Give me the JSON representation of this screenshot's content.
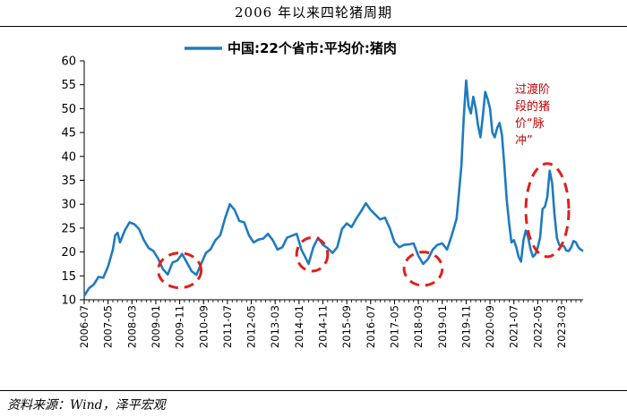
{
  "title": "2006 年以来四轮猪周期",
  "source": "资料来源：Wind，泽平宏观",
  "colors": {
    "line": "#1f7bc0",
    "annotation": "#e0201b"
  },
  "chart_data": {
    "type": "line",
    "legend": {
      "position": "top-center"
    },
    "series": [
      {
        "name": "中国:22个省市:平均价:猪肉",
        "points": [
          [
            "2006-07",
            10.8
          ],
          [
            "2006-09",
            12.4
          ],
          [
            "2006-11",
            13.2
          ],
          [
            "2007-01",
            14.8
          ],
          [
            "2007-03",
            14.6
          ],
          [
            "2007-05",
            17.0
          ],
          [
            "2007-07",
            20.5
          ],
          [
            "2007-08",
            23.5
          ],
          [
            "2007-09",
            24.0
          ],
          [
            "2007-10",
            22.0
          ],
          [
            "2007-12",
            24.5
          ],
          [
            "2008-02",
            26.2
          ],
          [
            "2008-04",
            25.8
          ],
          [
            "2008-06",
            24.8
          ],
          [
            "2008-08",
            22.5
          ],
          [
            "2008-10",
            20.8
          ],
          [
            "2008-12",
            20.2
          ],
          [
            "2009-02",
            18.6
          ],
          [
            "2009-04",
            16.4
          ],
          [
            "2009-06",
            15.3
          ],
          [
            "2009-08",
            17.8
          ],
          [
            "2009-10",
            18.2
          ],
          [
            "2009-12",
            19.6
          ],
          [
            "2010-02",
            17.8
          ],
          [
            "2010-04",
            16.0
          ],
          [
            "2010-06",
            15.2
          ],
          [
            "2010-08",
            17.5
          ],
          [
            "2010-10",
            19.8
          ],
          [
            "2010-12",
            20.6
          ],
          [
            "2011-02",
            22.5
          ],
          [
            "2011-04",
            23.5
          ],
          [
            "2011-06",
            27.0
          ],
          [
            "2011-08",
            30.0
          ],
          [
            "2011-10",
            28.8
          ],
          [
            "2011-12",
            26.5
          ],
          [
            "2012-02",
            26.2
          ],
          [
            "2012-04",
            23.5
          ],
          [
            "2012-06",
            22.0
          ],
          [
            "2012-08",
            22.6
          ],
          [
            "2012-10",
            22.8
          ],
          [
            "2012-12",
            23.8
          ],
          [
            "2013-02",
            22.5
          ],
          [
            "2013-04",
            20.5
          ],
          [
            "2013-06",
            21.0
          ],
          [
            "2013-08",
            23.0
          ],
          [
            "2013-10",
            23.4
          ],
          [
            "2013-12",
            23.8
          ],
          [
            "2014-02",
            20.5
          ],
          [
            "2014-04",
            18.5
          ],
          [
            "2014-05",
            17.5
          ],
          [
            "2014-07",
            21.0
          ],
          [
            "2014-09",
            23.0
          ],
          [
            "2014-11",
            21.5
          ],
          [
            "2015-01",
            20.8
          ],
          [
            "2015-03",
            19.8
          ],
          [
            "2015-05",
            21.0
          ],
          [
            "2015-07",
            24.8
          ],
          [
            "2015-09",
            26.0
          ],
          [
            "2015-11",
            25.2
          ],
          [
            "2016-01",
            27.0
          ],
          [
            "2016-03",
            28.5
          ],
          [
            "2016-05",
            30.2
          ],
          [
            "2016-07",
            28.8
          ],
          [
            "2016-09",
            27.8
          ],
          [
            "2016-11",
            26.8
          ],
          [
            "2017-01",
            27.2
          ],
          [
            "2017-03",
            25.0
          ],
          [
            "2017-05",
            22.0
          ],
          [
            "2017-07",
            21.0
          ],
          [
            "2017-09",
            21.5
          ],
          [
            "2017-11",
            21.6
          ],
          [
            "2018-01",
            21.8
          ],
          [
            "2018-03",
            19.2
          ],
          [
            "2018-05",
            17.5
          ],
          [
            "2018-07",
            18.5
          ],
          [
            "2018-09",
            20.5
          ],
          [
            "2018-11",
            21.5
          ],
          [
            "2019-01",
            21.8
          ],
          [
            "2019-03",
            20.5
          ],
          [
            "2019-05",
            23.5
          ],
          [
            "2019-07",
            27.0
          ],
          [
            "2019-09",
            38.0
          ],
          [
            "2019-10",
            48.0
          ],
          [
            "2019-11",
            55.9
          ],
          [
            "2019-12",
            50.5
          ],
          [
            "2020-01",
            49.0
          ],
          [
            "2020-02",
            52.5
          ],
          [
            "2020-03",
            50.0
          ],
          [
            "2020-04",
            46.5
          ],
          [
            "2020-05",
            44.0
          ],
          [
            "2020-06",
            48.5
          ],
          [
            "2020-07",
            53.5
          ],
          [
            "2020-08",
            52.0
          ],
          [
            "2020-09",
            50.0
          ],
          [
            "2020-10",
            45.0
          ],
          [
            "2020-11",
            44.0
          ],
          [
            "2020-12",
            46.0
          ],
          [
            "2021-01",
            47.0
          ],
          [
            "2021-02",
            44.5
          ],
          [
            "2021-03",
            38.0
          ],
          [
            "2021-04",
            31.0
          ],
          [
            "2021-05",
            26.0
          ],
          [
            "2021-06",
            22.0
          ],
          [
            "2021-07",
            22.5
          ],
          [
            "2021-08",
            21.0
          ],
          [
            "2021-09",
            19.0
          ],
          [
            "2021-10",
            18.0
          ],
          [
            "2021-11",
            22.5
          ],
          [
            "2021-12",
            24.5
          ],
          [
            "2022-01",
            23.0
          ],
          [
            "2022-02",
            20.5
          ],
          [
            "2022-03",
            19.0
          ],
          [
            "2022-04",
            19.5
          ],
          [
            "2022-05",
            21.0
          ],
          [
            "2022-06",
            23.0
          ],
          [
            "2022-07",
            29.0
          ],
          [
            "2022-08",
            29.5
          ],
          [
            "2022-09",
            31.5
          ],
          [
            "2022-10",
            37.0
          ],
          [
            "2022-11",
            34.5
          ],
          [
            "2022-12",
            28.0
          ],
          [
            "2023-01",
            23.0
          ],
          [
            "2023-02",
            21.5
          ],
          [
            "2023-03",
            21.3
          ],
          [
            "2023-04",
            21.2
          ],
          [
            "2023-05",
            20.3
          ],
          [
            "2023-06",
            20.2
          ],
          [
            "2023-07",
            21.0
          ],
          [
            "2023-08",
            22.3
          ],
          [
            "2023-09",
            22.0
          ],
          [
            "2023-10",
            21.0
          ],
          [
            "2023-11",
            20.5
          ],
          [
            "2023-12",
            20.2
          ]
        ]
      }
    ],
    "x_tick_labels": [
      "2006-07",
      "2007-05",
      "2008-03",
      "2009-01",
      "2009-11",
      "2010-09",
      "2011-07",
      "2012-05",
      "2013-03",
      "2014-01",
      "2014-11",
      "2015-09",
      "2016-07",
      "2017-05",
      "2018-03",
      "2019-01",
      "2019-11",
      "2020-09",
      "2021-07",
      "2022-05",
      "2023-03"
    ],
    "y_tick_labels": [
      "10",
      "15",
      "20",
      "25",
      "30",
      "35",
      "40",
      "45",
      "50",
      "55",
      "60"
    ],
    "ylim": [
      10,
      60
    ],
    "grid": false,
    "annotations": [
      {
        "text_lines": [
          "过渡阶",
          "段的猪",
          "价“脉",
          "冲”"
        ],
        "ellipse": {
          "x_from": "2021-12",
          "x_to": "2023-06",
          "y_from": 19,
          "y_to": 38.5
        }
      }
    ],
    "trough_ellipses": [
      {
        "x_from": "2009-02",
        "x_to": "2010-08",
        "y_from": 12.5,
        "y_to": 19.8
      },
      {
        "x_from": "2013-12",
        "x_to": "2015-01",
        "y_from": 16,
        "y_to": 23
      },
      {
        "x_from": "2017-09",
        "x_to": "2019-01",
        "y_from": 13,
        "y_to": 20
      }
    ]
  }
}
